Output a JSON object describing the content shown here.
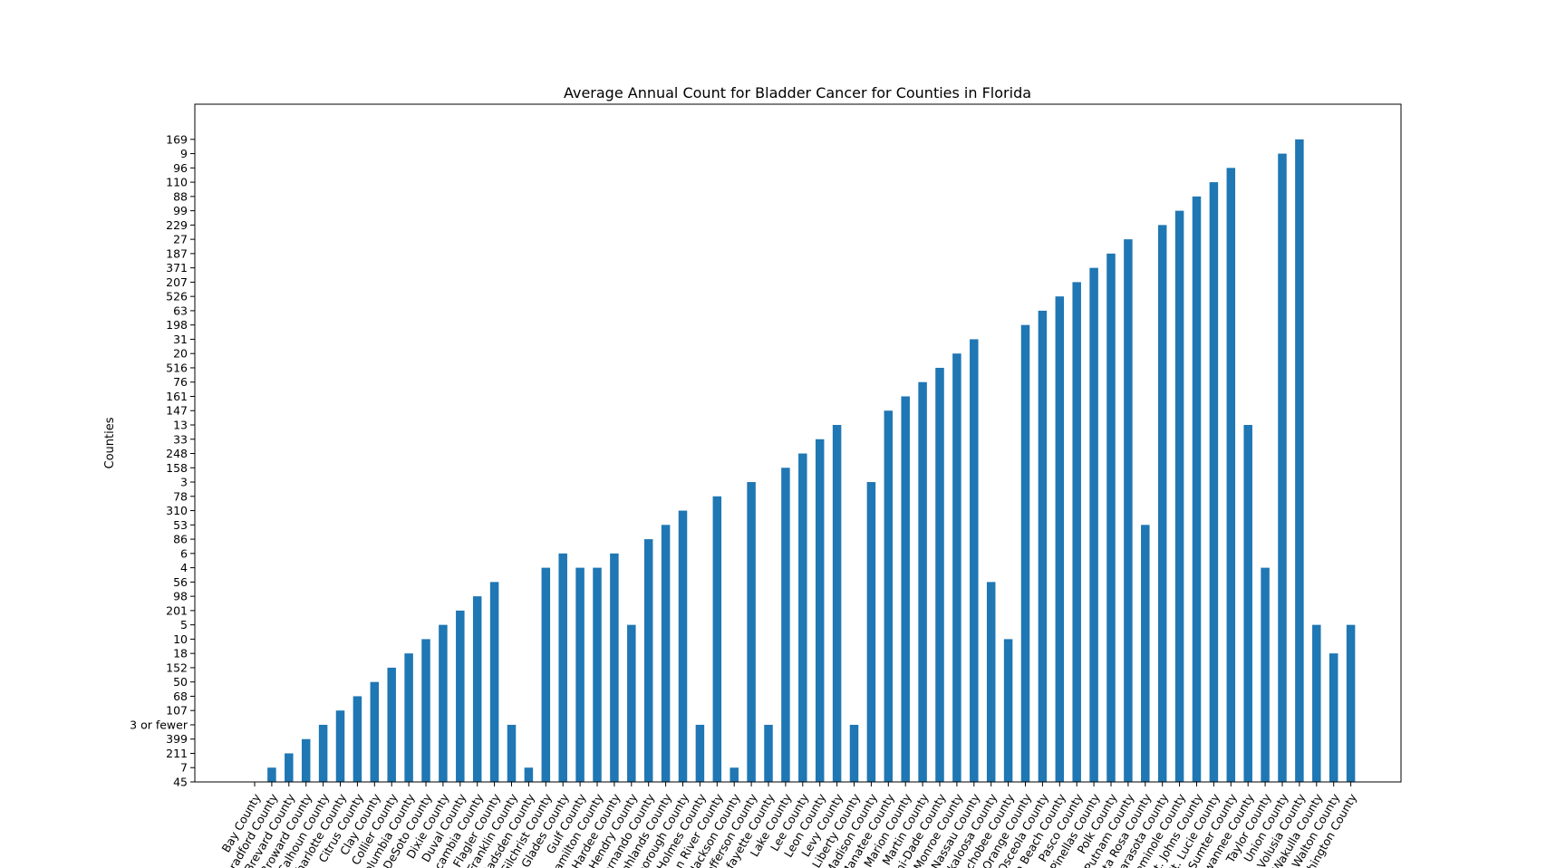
{
  "chart_data": {
    "type": "bar",
    "title": "Average Annual Count for Bladder Cancer for Counties in Florida",
    "xlabel": "",
    "ylabel": "Counties",
    "y_tick_labels": [
      "45",
      "7",
      "211",
      "399",
      "3 or fewer",
      "107",
      "68",
      "50",
      "152",
      "18",
      "10",
      "5",
      "201",
      "98",
      "56",
      "4",
      "6",
      "86",
      "53",
      "310",
      "78",
      "3",
      "158",
      "248",
      "33",
      "13",
      "147",
      "161",
      "76",
      "516",
      "20",
      "31",
      "198",
      "63",
      "526",
      "207",
      "371",
      "187",
      "27",
      "229",
      "99",
      "88",
      "110",
      "96",
      "9",
      "169"
    ],
    "categories": [
      "Bay County",
      "Bradford County",
      "Brevard County",
      "Broward County",
      "Calhoun County",
      "Charlotte County",
      "Citrus County",
      "Clay County",
      "Collier County",
      "Columbia County",
      "DeSoto County",
      "Dixie County",
      "Duval County",
      "Escambia County",
      "Flagler County",
      "Franklin County",
      "Gadsden County",
      "Gilchrist County",
      "Glades County",
      "Gulf County",
      "Hamilton County",
      "Hardee County",
      "Hendry County",
      "Hernando County",
      "Highlands County",
      "Hillsborough County",
      "Holmes County",
      "Indian River County",
      "Jackson County",
      "Jefferson County",
      "Lafayette County",
      "Lake County",
      "Lee County",
      "Leon County",
      "Levy County",
      "Liberty County",
      "Madison County",
      "Manatee County",
      "Marion County",
      "Martin County",
      "Miami-Dade County",
      "Monroe County",
      "Nassau County",
      "Okaloosa County",
      "Okeechobee County",
      "Orange County",
      "Osceola County",
      "Palm Beach County",
      "Pasco County",
      "Pinellas County",
      "Polk County",
      "Putnam County",
      "Santa Rosa County",
      "Sarasota County",
      "Seminole County",
      "St. Johns County",
      "St. Lucie County",
      "Sumter County",
      "Suwannee County",
      "Taylor County",
      "Union County",
      "Volusia County",
      "Wakulla County",
      "Walton County",
      "Washington County"
    ],
    "values": [
      "45",
      "7",
      "211",
      "399",
      "3 or fewer",
      "107",
      "68",
      "50",
      "152",
      "18",
      "10",
      "5",
      "201",
      "98",
      "56",
      "3 or fewer",
      "7",
      "4",
      "6",
      "4",
      "4",
      "6",
      "5",
      "86",
      "53",
      "310",
      "3 or fewer",
      "78",
      "7",
      "3",
      "3 or fewer",
      "158",
      "248",
      "33",
      "13",
      "3 or fewer",
      "3",
      "147",
      "161",
      "76",
      "516",
      "20",
      "31",
      "56",
      "10",
      "198",
      "63",
      "526",
      "207",
      "371",
      "187",
      "27",
      "53",
      "229",
      "99",
      "88",
      "110",
      "96",
      "13",
      "4",
      "9",
      "169",
      "5",
      "18",
      "5"
    ],
    "color": "#1f77b4",
    "grid": false,
    "legend": "none"
  }
}
